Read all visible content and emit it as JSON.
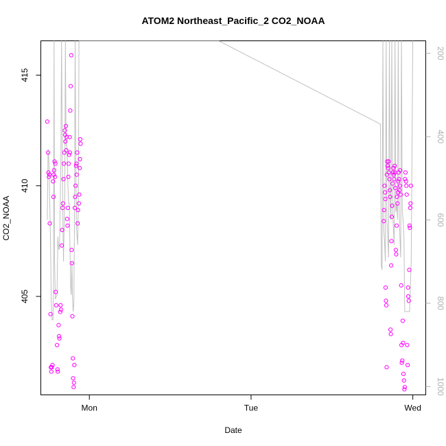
{
  "chart_data": {
    "type": "scatter",
    "title": "ATOM2 Northeast_Pacific_2 CO2_NOAA",
    "xlabel": "Date",
    "ylabel": "CO2_NOAA",
    "x_ticks": [
      "Mon",
      "Tue",
      "Wed"
    ],
    "xlim_days": [
      -0.3,
      2.08
    ],
    "ylim": [
      400.55,
      416.55
    ],
    "y_ticks": [
      405,
      410,
      415
    ],
    "y2_ticks": [
      200,
      400,
      600,
      800,
      1000
    ],
    "y2lim": [
      1020,
      170
    ],
    "grid": false,
    "legend": "none",
    "colors": {
      "points": "#ff00ff",
      "line": "#c0c0c0",
      "axis": "#000000",
      "y2_axis": "#b0b0b0"
    },
    "series": [
      {
        "kind": "points",
        "points": [
          [
            -0.26,
            412.9
          ],
          [
            -0.255,
            411.5
          ],
          [
            -0.253,
            410.6
          ],
          [
            -0.25,
            410.4
          ],
          [
            -0.247,
            410.5
          ],
          [
            -0.245,
            408.3
          ],
          [
            -0.24,
            404.2
          ],
          [
            -0.238,
            401.8
          ],
          [
            -0.235,
            401.6
          ],
          [
            -0.232,
            401.8
          ],
          [
            -0.228,
            401.9
          ],
          [
            -0.225,
            410.2
          ],
          [
            -0.222,
            409.5
          ],
          [
            -0.22,
            410.5
          ],
          [
            -0.218,
            410.7
          ],
          [
            -0.215,
            411.1
          ],
          [
            -0.212,
            410.4
          ],
          [
            -0.21,
            411.0
          ],
          [
            -0.208,
            405.2
          ],
          [
            -0.205,
            404.6
          ],
          [
            -0.2,
            402.8
          ],
          [
            -0.197,
            401.7
          ],
          [
            -0.195,
            401.6
          ],
          [
            -0.19,
            403.7
          ],
          [
            -0.187,
            403.2
          ],
          [
            -0.185,
            403.1
          ],
          [
            -0.18,
            404.3
          ],
          [
            -0.178,
            404.6
          ],
          [
            -0.175,
            404.4
          ],
          [
            -0.17,
            407.3
          ],
          [
            -0.168,
            408.0
          ],
          [
            -0.165,
            409.0
          ],
          [
            -0.163,
            409.2
          ],
          [
            -0.16,
            410.3
          ],
          [
            -0.158,
            411.0
          ],
          [
            -0.155,
            411.5
          ],
          [
            -0.152,
            412.5
          ],
          [
            -0.15,
            412.3
          ],
          [
            -0.148,
            412.0
          ],
          [
            -0.145,
            412.7
          ],
          [
            -0.142,
            411.6
          ],
          [
            -0.14,
            412.2
          ],
          [
            -0.137,
            408.5
          ],
          [
            -0.135,
            408.2
          ],
          [
            -0.133,
            409.0
          ],
          [
            -0.13,
            410.4
          ],
          [
            -0.128,
            411.0
          ],
          [
            -0.125,
            411.4
          ],
          [
            -0.122,
            412.2
          ],
          [
            -0.12,
            411.5
          ],
          [
            -0.118,
            413.4
          ],
          [
            -0.115,
            414.5
          ],
          [
            -0.112,
            415.9
          ],
          [
            -0.11,
            407.1
          ],
          [
            -0.108,
            406.5
          ],
          [
            -0.105,
            404.1
          ],
          [
            -0.102,
            402.2
          ],
          [
            -0.1,
            401.3
          ],
          [
            -0.097,
            400.9
          ],
          [
            -0.095,
            401.1
          ],
          [
            -0.093,
            401.9
          ],
          [
            -0.09,
            409.0
          ],
          [
            -0.088,
            409.5
          ],
          [
            -0.085,
            410.0
          ],
          [
            -0.082,
            410.9
          ],
          [
            -0.08,
            411.0
          ],
          [
            -0.078,
            410.5
          ],
          [
            -0.075,
            411.5
          ],
          [
            -0.072,
            408.3
          ],
          [
            -0.07,
            408.9
          ],
          [
            -0.065,
            409.2
          ],
          [
            -0.063,
            409.6
          ],
          [
            -0.06,
            410.8
          ],
          [
            -0.058,
            411.2
          ],
          [
            -0.056,
            412.1
          ],
          [
            -0.054,
            411.9
          ],
          [
            1.82,
            408.4
          ],
          [
            1.822,
            408.9
          ],
          [
            1.825,
            410.0
          ],
          [
            1.828,
            409.7
          ],
          [
            1.83,
            409.4
          ],
          [
            1.832,
            405.4
          ],
          [
            1.834,
            404.8
          ],
          [
            1.836,
            404.6
          ],
          [
            1.838,
            401.8
          ],
          [
            1.84,
            410.5
          ],
          [
            1.842,
            411.1
          ],
          [
            1.845,
            410.9
          ],
          [
            1.848,
            410.8
          ],
          [
            1.85,
            411.1
          ],
          [
            1.852,
            410.6
          ],
          [
            1.855,
            410.3
          ],
          [
            1.858,
            409.8
          ],
          [
            1.86,
            409.5
          ],
          [
            1.862,
            403.5
          ],
          [
            1.864,
            403.3
          ],
          [
            1.866,
            406.4
          ],
          [
            1.868,
            407.5
          ],
          [
            1.87,
            408.6
          ],
          [
            1.872,
            409.1
          ],
          [
            1.875,
            410.1
          ],
          [
            1.878,
            410.6
          ],
          [
            1.88,
            410.8
          ],
          [
            1.882,
            410.5
          ],
          [
            1.885,
            410.3
          ],
          [
            1.888,
            410.9
          ],
          [
            1.89,
            410.6
          ],
          [
            1.892,
            409.9
          ],
          [
            1.895,
            407.1
          ],
          [
            1.897,
            406.9
          ],
          [
            1.9,
            408.2
          ],
          [
            1.902,
            409.5
          ],
          [
            1.905,
            409.2
          ],
          [
            1.908,
            409.7
          ],
          [
            1.91,
            410.2
          ],
          [
            1.912,
            410.6
          ],
          [
            1.915,
            410.3
          ],
          [
            1.918,
            409.8
          ],
          [
            1.92,
            410.0
          ],
          [
            1.922,
            410.7
          ],
          [
            1.925,
            409.6
          ],
          [
            1.928,
            405.5
          ],
          [
            1.93,
            402.8
          ],
          [
            1.932,
            402.0
          ],
          [
            1.935,
            402.1
          ],
          [
            1.938,
            403.9
          ],
          [
            1.94,
            402.9
          ],
          [
            1.942,
            401.5
          ],
          [
            1.945,
            401.2
          ],
          [
            1.948,
            400.8
          ],
          [
            1.95,
            400.9
          ],
          [
            1.952,
            410.3
          ],
          [
            1.955,
            410.6
          ],
          [
            1.958,
            410.2
          ],
          [
            1.96,
            410.0
          ],
          [
            1.962,
            409.6
          ],
          [
            1.965,
            402.8
          ],
          [
            1.968,
            401.9
          ],
          [
            1.97,
            405.4
          ],
          [
            1.972,
            405.0
          ],
          [
            1.975,
            404.8
          ],
          [
            1.978,
            406.2
          ],
          [
            1.98,
            408.2
          ],
          [
            1.982,
            408.1
          ],
          [
            1.984,
            409.0
          ],
          [
            1.986,
            409.2
          ],
          [
            1.988,
            410.0
          ]
        ]
      },
      {
        "kind": "line",
        "axis": "y2",
        "points": [
          [
            -0.26,
            600
          ],
          [
            -0.255,
            430
          ],
          [
            -0.25,
            460
          ],
          [
            -0.245,
            560
          ],
          [
            -0.24,
            650
          ],
          [
            -0.235,
            800
          ],
          [
            -0.23,
            840
          ],
          [
            -0.225,
            840
          ],
          [
            -0.222,
            780
          ],
          [
            -0.218,
            170
          ],
          [
            -0.215,
            700
          ],
          [
            -0.21,
            790
          ],
          [
            -0.2,
            780
          ],
          [
            -0.195,
            640
          ],
          [
            -0.19,
            670
          ],
          [
            -0.185,
            670
          ],
          [
            -0.18,
            560
          ],
          [
            -0.176,
            460
          ],
          [
            -0.172,
            170
          ],
          [
            -0.168,
            400
          ],
          [
            -0.164,
            600
          ],
          [
            -0.16,
            700
          ],
          [
            -0.156,
            620
          ],
          [
            -0.152,
            540
          ],
          [
            -0.148,
            170
          ],
          [
            -0.144,
            420
          ],
          [
            -0.14,
            420
          ],
          [
            -0.136,
            460
          ],
          [
            -0.132,
            520
          ],
          [
            -0.128,
            560
          ],
          [
            -0.124,
            560
          ],
          [
            -0.12,
            660
          ],
          [
            -0.116,
            760
          ],
          [
            -0.112,
            780
          ],
          [
            -0.108,
            700
          ],
          [
            -0.104,
            790
          ],
          [
            -0.1,
            820
          ],
          [
            -0.096,
            800
          ],
          [
            -0.092,
            620
          ],
          [
            -0.088,
            170
          ],
          [
            -0.084,
            450
          ],
          [
            -0.08,
            620
          ],
          [
            -0.076,
            640
          ],
          [
            -0.072,
            660
          ],
          [
            -0.068,
            560
          ],
          [
            -0.064,
            170
          ],
          [
            -0.06,
            170
          ],
          [
            0.8,
            170
          ],
          [
            1.75,
            360
          ],
          [
            1.8,
            370
          ],
          [
            1.805,
            710
          ],
          [
            1.81,
            720
          ],
          [
            1.815,
            170
          ],
          [
            1.82,
            620
          ],
          [
            1.825,
            650
          ],
          [
            1.83,
            700
          ],
          [
            1.835,
            170
          ],
          [
            1.84,
            600
          ],
          [
            1.845,
            640
          ],
          [
            1.85,
            690
          ],
          [
            1.855,
            170
          ],
          [
            1.86,
            560
          ],
          [
            1.865,
            600
          ],
          [
            1.87,
            170
          ],
          [
            1.875,
            580
          ],
          [
            1.88,
            620
          ],
          [
            1.885,
            660
          ],
          [
            1.89,
            170
          ],
          [
            1.895,
            580
          ],
          [
            1.9,
            560
          ],
          [
            1.905,
            600
          ],
          [
            1.91,
            170
          ],
          [
            1.915,
            570
          ],
          [
            1.92,
            640
          ],
          [
            1.925,
            690
          ],
          [
            1.93,
            170
          ],
          [
            1.935,
            580
          ],
          [
            1.94,
            600
          ],
          [
            1.945,
            640
          ],
          [
            1.95,
            820
          ],
          [
            1.955,
            820
          ],
          [
            1.96,
            820
          ],
          [
            1.965,
            820
          ],
          [
            1.97,
            820
          ],
          [
            1.98,
            820
          ],
          [
            1.99,
            700
          ],
          [
            2.0,
            170
          ]
        ]
      }
    ]
  }
}
